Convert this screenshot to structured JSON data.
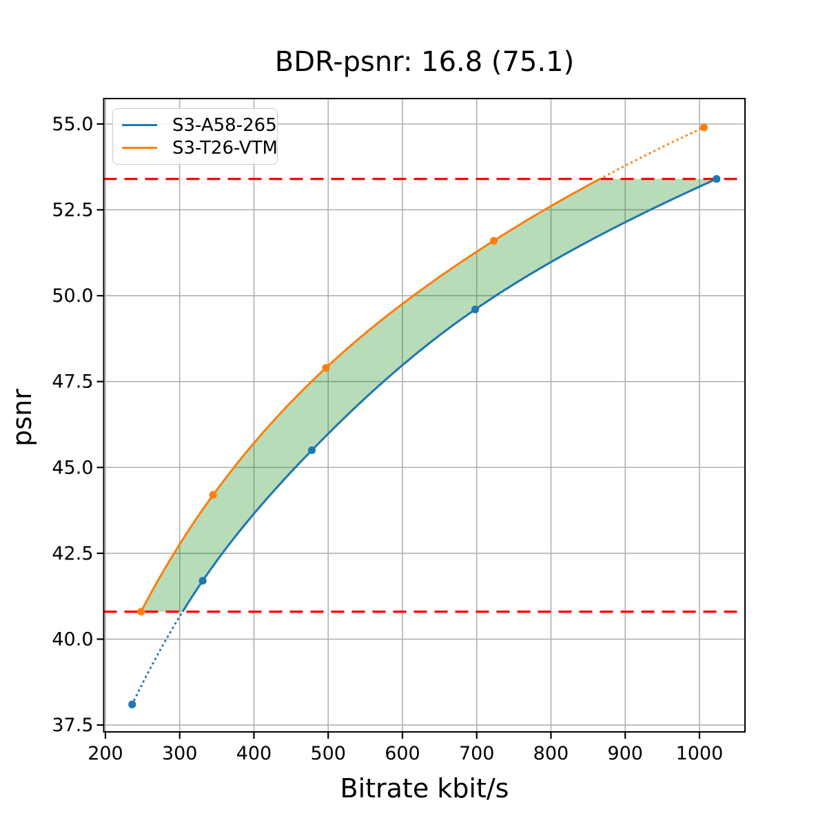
{
  "chart_data": {
    "type": "line",
    "title": "BDR-psnr: 16.8 (75.1)",
    "xlabel": "Bitrate kbit/s",
    "ylabel": "psnr",
    "xlim": [
      197.7,
      1061.3
    ],
    "ylim": [
      37.3,
      55.74
    ],
    "xticks": [
      "200",
      "300",
      "400",
      "500",
      "600",
      "700",
      "800",
      "900",
      "1000"
    ],
    "yticks": [
      "37.5",
      "40.0",
      "42.5",
      "45.0",
      "47.5",
      "50.0",
      "52.5",
      "55.0"
    ],
    "grid": true,
    "grid_color": "#b0b0b0",
    "legend_position": "upper-left",
    "series": [
      {
        "name": "S3-A58-265",
        "color": "#1f77b4",
        "points": [
          [
            236,
            38.1
          ],
          [
            331,
            41.7
          ],
          [
            478,
            45.5
          ],
          [
            698,
            49.6
          ],
          [
            1023,
            53.4
          ]
        ]
      },
      {
        "name": "S3-T26-VTM",
        "color": "#ff7f0e",
        "points": [
          [
            248,
            40.8
          ],
          [
            345,
            44.2
          ],
          [
            497,
            47.9
          ],
          [
            723,
            51.6
          ],
          [
            1006,
            54.9
          ]
        ]
      }
    ],
    "overlap_lines": {
      "color": "#ff0000",
      "style": "dashed",
      "upper": 53.4,
      "lower": 40.8
    },
    "fill_between": {
      "color": "#008000",
      "opacity": 0.28
    }
  }
}
